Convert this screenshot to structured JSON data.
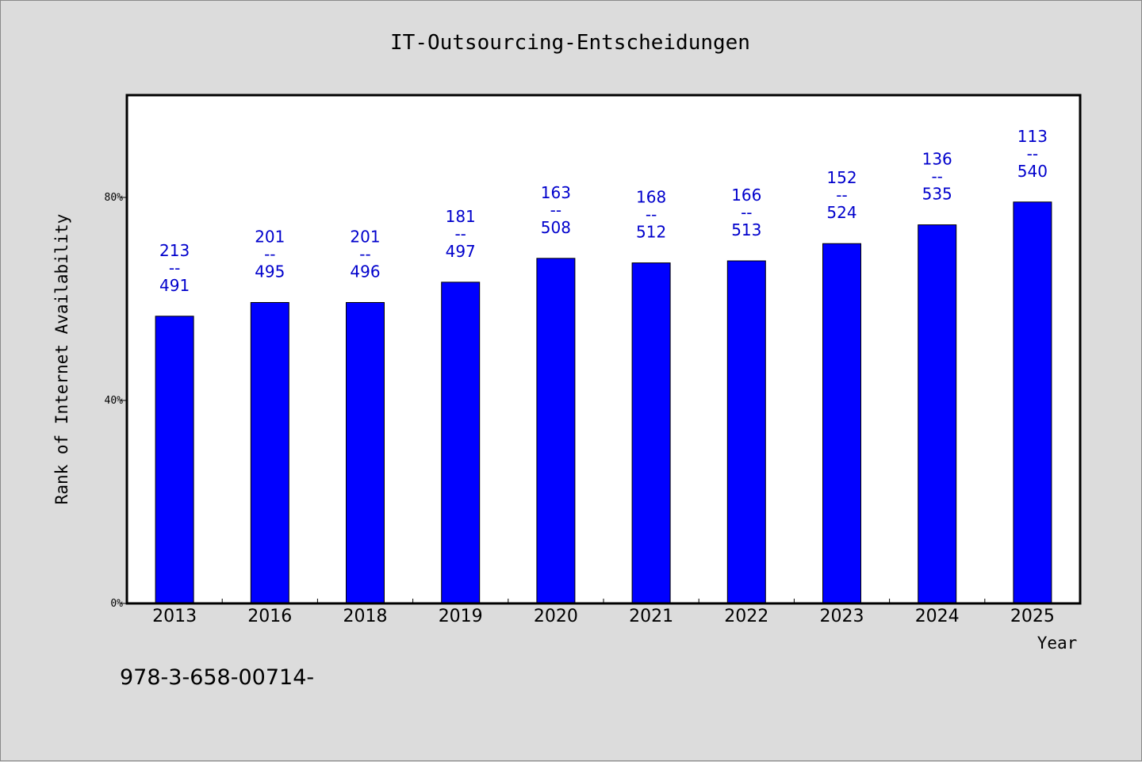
{
  "chart_data": {
    "type": "bar",
    "title": "IT-Outsourcing-Entscheidungen",
    "xlabel": "Year",
    "ylabel": "Rank of Internet Availability",
    "ylim": [
      0,
      100
    ],
    "yticks": [
      0,
      40,
      80
    ],
    "ytick_labels": [
      "0%",
      "40%",
      "80%"
    ],
    "grid": false,
    "categories": [
      "2013",
      "2016",
      "2018",
      "2019",
      "2020",
      "2021",
      "2022",
      "2023",
      "2024",
      "2025"
    ],
    "series": [
      {
        "values": [
          56.6,
          59.3,
          59.3,
          63.3,
          68.0,
          67.1,
          67.5,
          70.9,
          74.6,
          79.1
        ],
        "labels": [
          [
            "213",
            "--",
            "491"
          ],
          [
            "201",
            "--",
            "495"
          ],
          [
            "201",
            "--",
            "496"
          ],
          [
            "181",
            "--",
            "497"
          ],
          [
            "163",
            "--",
            "508"
          ],
          [
            "168",
            "--",
            "512"
          ],
          [
            "166",
            "--",
            "513"
          ],
          [
            "152",
            "--",
            "524"
          ],
          [
            "136",
            "--",
            "535"
          ],
          [
            "113",
            "--",
            "540"
          ]
        ]
      }
    ],
    "colors": {
      "bar": "#0000ff",
      "bar_label": "#0000cc",
      "plot_background": "#ffffff",
      "page_background": "#dcdcdc"
    },
    "footnote": "978-3-658-00714-"
  }
}
